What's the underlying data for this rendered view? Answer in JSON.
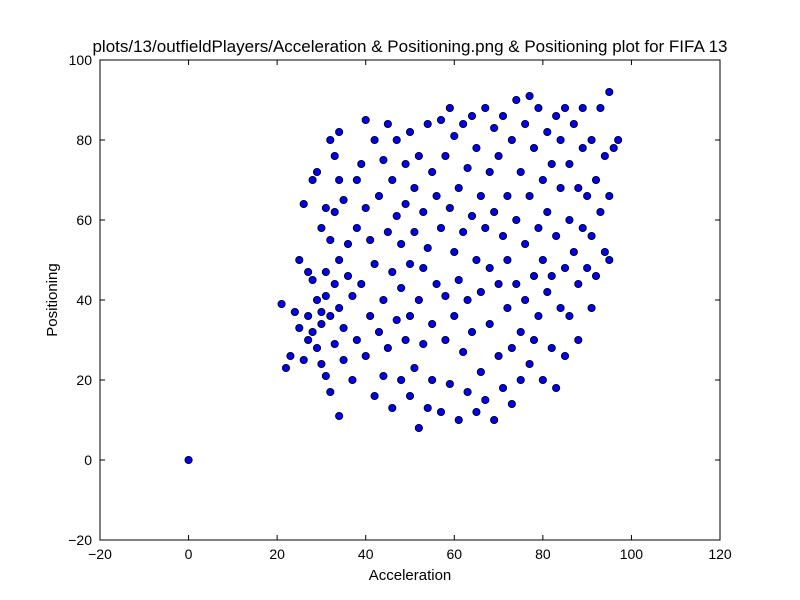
{
  "chart_data": {
    "type": "scatter",
    "title": "plots/13/outfieldPlayers/Acceleration & Positioning.png & Positioning plot for FIFA 13",
    "xlabel": "Acceleration",
    "ylabel": "Positioning",
    "xlim": [
      -20,
      120
    ],
    "ylim": [
      -20,
      100
    ],
    "xticks": [
      -20,
      0,
      20,
      40,
      60,
      80,
      100,
      120
    ],
    "yticks": [
      -20,
      0,
      20,
      40,
      60,
      80,
      100
    ],
    "xtick_labels": [
      "−20",
      "0",
      "20",
      "40",
      "60",
      "80",
      "100",
      "120"
    ],
    "ytick_labels": [
      "−20",
      "0",
      "20",
      "40",
      "60",
      "80",
      "100"
    ],
    "grid": false,
    "marker_color": "#0000ff",
    "marker_edge_color": "#000000",
    "series": [
      {
        "values": [
          [
            0,
            0
          ],
          [
            21,
            39
          ],
          [
            22,
            23
          ],
          [
            23,
            26
          ],
          [
            24,
            37
          ],
          [
            25,
            33
          ],
          [
            25,
            50
          ],
          [
            26,
            25
          ],
          [
            26,
            64
          ],
          [
            27,
            36
          ],
          [
            27,
            30
          ],
          [
            27,
            47
          ],
          [
            28,
            70
          ],
          [
            28,
            45
          ],
          [
            28,
            32
          ],
          [
            29,
            40
          ],
          [
            29,
            28
          ],
          [
            29,
            72
          ],
          [
            30,
            34
          ],
          [
            30,
            24
          ],
          [
            30,
            58
          ],
          [
            30,
            37
          ],
          [
            31,
            41
          ],
          [
            31,
            21
          ],
          [
            31,
            63
          ],
          [
            31,
            47
          ],
          [
            32,
            80
          ],
          [
            32,
            36
          ],
          [
            32,
            55
          ],
          [
            32,
            17
          ],
          [
            33,
            29
          ],
          [
            33,
            76
          ],
          [
            33,
            44
          ],
          [
            33,
            62
          ],
          [
            34,
            82
          ],
          [
            34,
            11
          ],
          [
            34,
            70
          ],
          [
            34,
            38
          ],
          [
            34,
            50
          ],
          [
            35,
            25
          ],
          [
            35,
            33
          ],
          [
            35,
            65
          ],
          [
            36,
            46
          ],
          [
            36,
            54
          ],
          [
            37,
            41
          ],
          [
            37,
            20
          ],
          [
            38,
            70
          ],
          [
            38,
            30
          ],
          [
            38,
            58
          ],
          [
            39,
            74
          ],
          [
            39,
            44
          ],
          [
            40,
            85
          ],
          [
            40,
            26
          ],
          [
            40,
            63
          ],
          [
            41,
            55
          ],
          [
            41,
            36
          ],
          [
            42,
            80
          ],
          [
            42,
            16
          ],
          [
            42,
            49
          ],
          [
            43,
            66
          ],
          [
            43,
            32
          ],
          [
            44,
            75
          ],
          [
            44,
            40
          ],
          [
            44,
            21
          ],
          [
            45,
            84
          ],
          [
            45,
            57
          ],
          [
            45,
            28
          ],
          [
            46,
            70
          ],
          [
            46,
            47
          ],
          [
            46,
            13
          ],
          [
            47,
            80
          ],
          [
            47,
            35
          ],
          [
            47,
            61
          ],
          [
            48,
            54
          ],
          [
            48,
            20
          ],
          [
            48,
            43
          ],
          [
            49,
            74
          ],
          [
            49,
            30
          ],
          [
            49,
            64
          ],
          [
            50,
            82
          ],
          [
            50,
            49
          ],
          [
            50,
            16
          ],
          [
            50,
            36
          ],
          [
            51,
            68
          ],
          [
            51,
            23
          ],
          [
            51,
            57
          ],
          [
            52,
            8
          ],
          [
            52,
            40
          ],
          [
            52,
            76
          ],
          [
            53,
            62
          ],
          [
            53,
            29
          ],
          [
            53,
            48
          ],
          [
            54,
            84
          ],
          [
            54,
            13
          ],
          [
            54,
            53
          ],
          [
            55,
            72
          ],
          [
            55,
            34
          ],
          [
            55,
            20
          ],
          [
            56,
            66
          ],
          [
            56,
            44
          ],
          [
            57,
            85
          ],
          [
            57,
            12
          ],
          [
            57,
            58
          ],
          [
            58,
            30
          ],
          [
            58,
            76
          ],
          [
            58,
            41
          ],
          [
            59,
            88
          ],
          [
            59,
            19
          ],
          [
            59,
            63
          ],
          [
            60,
            36
          ],
          [
            60,
            52
          ],
          [
            60,
            81
          ],
          [
            61,
            10
          ],
          [
            61,
            68
          ],
          [
            61,
            45
          ],
          [
            62,
            27
          ],
          [
            62,
            57
          ],
          [
            62,
            84
          ],
          [
            63,
            17
          ],
          [
            63,
            40
          ],
          [
            63,
            73
          ],
          [
            64,
            61
          ],
          [
            64,
            32
          ],
          [
            64,
            86
          ],
          [
            65,
            12
          ],
          [
            65,
            50
          ],
          [
            65,
            78
          ],
          [
            66,
            22
          ],
          [
            66,
            66
          ],
          [
            66,
            42
          ],
          [
            67,
            88
          ],
          [
            67,
            15
          ],
          [
            67,
            58
          ],
          [
            68,
            34
          ],
          [
            68,
            72
          ],
          [
            68,
            48
          ],
          [
            69,
            10
          ],
          [
            69,
            83
          ],
          [
            69,
            62
          ],
          [
            70,
            26
          ],
          [
            70,
            44
          ],
          [
            70,
            76
          ],
          [
            71,
            56
          ],
          [
            71,
            18
          ],
          [
            71,
            86
          ],
          [
            72,
            38
          ],
          [
            72,
            66
          ],
          [
            72,
            50
          ],
          [
            73,
            28
          ],
          [
            73,
            80
          ],
          [
            73,
            14
          ],
          [
            74,
            60
          ],
          [
            74,
            44
          ],
          [
            74,
            90
          ],
          [
            75,
            32
          ],
          [
            75,
            72
          ],
          [
            75,
            20
          ],
          [
            76,
            54
          ],
          [
            76,
            84
          ],
          [
            76,
            40
          ],
          [
            77,
            24
          ],
          [
            77,
            66
          ],
          [
            77,
            91
          ],
          [
            78,
            46
          ],
          [
            78,
            30
          ],
          [
            78,
            78
          ],
          [
            79,
            58
          ],
          [
            79,
            36
          ],
          [
            79,
            88
          ],
          [
            80,
            20
          ],
          [
            80,
            70
          ],
          [
            80,
            50
          ],
          [
            81,
            42
          ],
          [
            81,
            82
          ],
          [
            81,
            62
          ],
          [
            82,
            28
          ],
          [
            82,
            74
          ],
          [
            82,
            46
          ],
          [
            83,
            86
          ],
          [
            83,
            56
          ],
          [
            83,
            18
          ],
          [
            84,
            38
          ],
          [
            84,
            68
          ],
          [
            84,
            80
          ],
          [
            85,
            48
          ],
          [
            85,
            88
          ],
          [
            85,
            26
          ],
          [
            86,
            60
          ],
          [
            86,
            74
          ],
          [
            86,
            36
          ],
          [
            87,
            84
          ],
          [
            87,
            52
          ],
          [
            88,
            44
          ],
          [
            88,
            68
          ],
          [
            88,
            30
          ],
          [
            89,
            78
          ],
          [
            89,
            58
          ],
          [
            89,
            88
          ],
          [
            90,
            48
          ],
          [
            90,
            66
          ],
          [
            91,
            38
          ],
          [
            91,
            80
          ],
          [
            91,
            56
          ],
          [
            92,
            70
          ],
          [
            92,
            46
          ],
          [
            93,
            88
          ],
          [
            93,
            62
          ],
          [
            94,
            76
          ],
          [
            94,
            52
          ],
          [
            95,
            50
          ],
          [
            95,
            92
          ],
          [
            95,
            66
          ],
          [
            96,
            78
          ],
          [
            97,
            80
          ]
        ]
      }
    ]
  }
}
